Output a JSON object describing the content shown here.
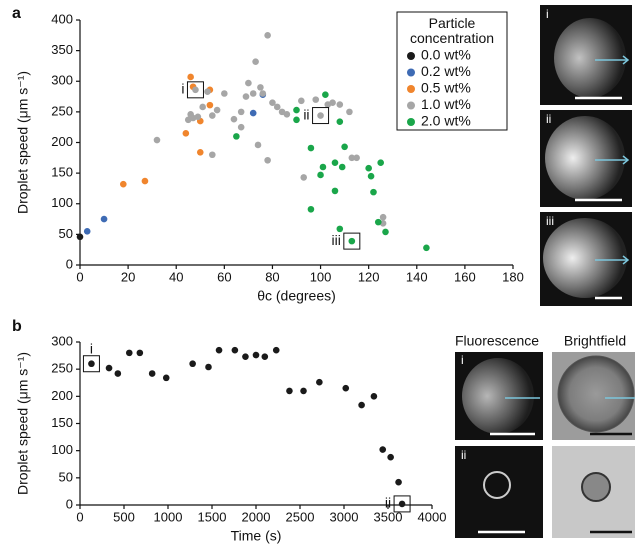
{
  "chart_data": [
    {
      "type": "scatter",
      "panel": "a",
      "xlabel": "θc (degrees)",
      "ylabel": "Droplet speed (μm s⁻¹)",
      "xlim": [
        0,
        180
      ],
      "xticks": [
        0,
        20,
        40,
        60,
        80,
        100,
        120,
        140,
        160,
        180
      ],
      "ylim": [
        0,
        400
      ],
      "yticks": [
        0,
        50,
        100,
        150,
        200,
        250,
        300,
        350,
        400
      ],
      "legend": "upper right",
      "legend_title": "Particle concentration",
      "series": [
        {
          "name": "0.0 wt%",
          "color": "#1a1a1a",
          "x": [
            0
          ],
          "values": [
            46
          ]
        },
        {
          "name": "0.2 wt%",
          "color": "#3e6bb4",
          "x": [
            3,
            10,
            72,
            76
          ],
          "values": [
            55,
            75,
            248,
            278
          ]
        },
        {
          "name": "0.5 wt%",
          "color": "#f0852d",
          "x": [
            18,
            27,
            44,
            46,
            47,
            50,
            50,
            54,
            54
          ],
          "values": [
            132,
            137,
            215,
            307,
            291,
            235,
            184,
            261,
            286
          ]
        },
        {
          "name": "1.0 wt%",
          "color": "#a6a6a6",
          "x": [
            32,
            45,
            46,
            47,
            48,
            49,
            51,
            53,
            55,
            55,
            57,
            60,
            64,
            67,
            67,
            69,
            70,
            72,
            73,
            74,
            75,
            76,
            78,
            78,
            80,
            82,
            84,
            86,
            92,
            93,
            98,
            100,
            103,
            105,
            108,
            112,
            113,
            115,
            126,
            126
          ],
          "values": [
            204,
            237,
            246,
            240,
            286,
            242,
            258,
            283,
            244,
            180,
            253,
            280,
            238,
            250,
            225,
            275,
            297,
            280,
            332,
            196,
            290,
            280,
            171,
            375,
            265,
            258,
            250,
            246,
            268,
            143,
            270,
            244,
            262,
            265,
            262,
            250,
            175,
            175,
            78,
            68
          ]
        },
        {
          "name": "2.0 wt%",
          "color": "#1aa64a",
          "x": [
            65,
            90,
            90,
            102,
            96,
            100,
            101,
            108,
            110,
            106,
            109,
            106,
            96,
            108,
            113,
            120,
            121,
            122,
            125,
            124,
            127,
            144
          ],
          "values": [
            210,
            253,
            237,
            278,
            191,
            147,
            160,
            234,
            193,
            167,
            160,
            121,
            91,
            59,
            39,
            158,
            145,
            119,
            167,
            70,
            54,
            28
          ]
        }
      ],
      "annotations": [
        {
          "text": "i",
          "x": 48,
          "y": 286
        },
        {
          "text": "ii",
          "x": 100,
          "y": 244
        },
        {
          "text": "iii",
          "x": 113,
          "y": 39
        }
      ]
    },
    {
      "type": "scatter",
      "panel": "b",
      "xlabel": "Time (s)",
      "ylabel": "Droplet speed (μm s⁻¹)",
      "xlim": [
        0,
        4000
      ],
      "xticks": [
        0,
        500,
        1000,
        1500,
        2000,
        2500,
        3000,
        3500,
        4000
      ],
      "ylim": [
        0,
        300
      ],
      "yticks": [
        0,
        50,
        100,
        150,
        200,
        250,
        300
      ],
      "color": "#1a1a1a",
      "x": [
        130,
        330,
        430,
        560,
        680,
        820,
        980,
        1280,
        1460,
        1580,
        1760,
        1880,
        2000,
        2100,
        2230,
        2380,
        2540,
        2720,
        3020,
        3200,
        3340,
        3440,
        3530,
        3620,
        3660
      ],
      "values": [
        260,
        252,
        242,
        280,
        280,
        242,
        234,
        260,
        254,
        285,
        285,
        273,
        276,
        273,
        285,
        210,
        210,
        226,
        215,
        184,
        200,
        102,
        88,
        42,
        2
      ],
      "annotations": [
        {
          "text": "i",
          "x": 130,
          "y": 260
        },
        {
          "text": "ii",
          "x": 3660,
          "y": 2
        }
      ]
    }
  ],
  "micrographs": {
    "a": [
      "i",
      "ii",
      "iii"
    ],
    "b_columns": [
      "Fluorescence",
      "Brightfield"
    ],
    "b_rows": [
      "i",
      "ii"
    ]
  }
}
